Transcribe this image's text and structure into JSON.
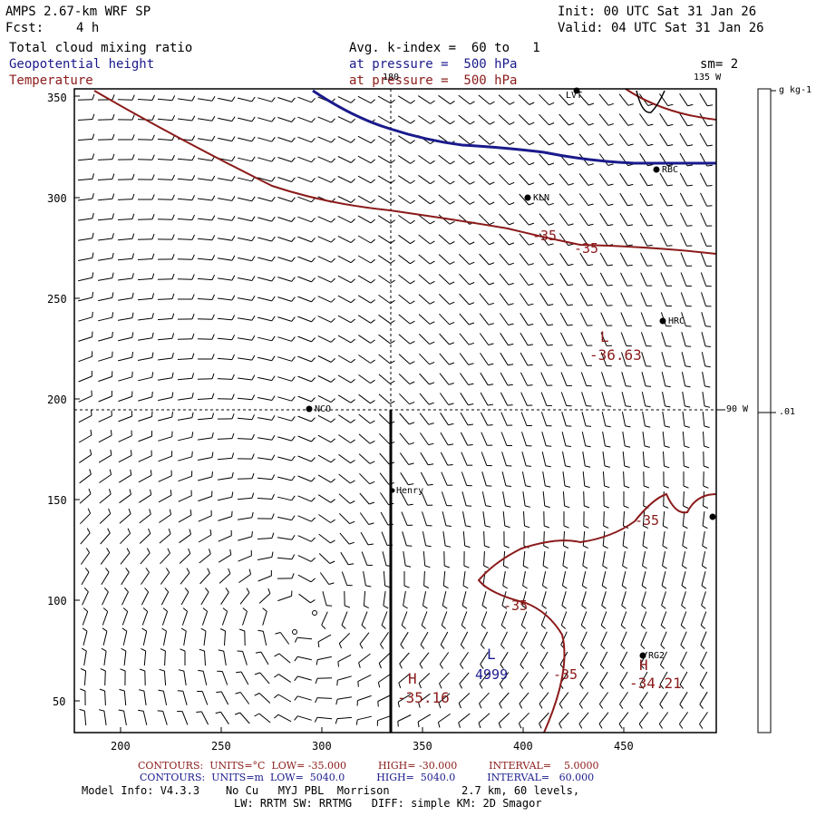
{
  "header": {
    "model": "AMPS 2.67-km WRF SP",
    "fcst_label": "Fcst:",
    "fcst_value": "4 h",
    "init": "Init: 00 UTC Sat 31 Jan 26",
    "valid": "Valid: 04 UTC Sat 31 Jan 26",
    "field1": "Total cloud mixing ratio",
    "field2": "Geopotential height",
    "field3": "Temperature",
    "avg": "Avg. k-index =  60 to   1",
    "pressure1": "at pressure =  500 hPa",
    "pressure2": "at pressure =  500 hPa",
    "sm": "sm= 2"
  },
  "colors": {
    "temperature": "#8b1a1a",
    "height": "#1a1a8c",
    "frame": "#000000"
  },
  "map": {
    "y_ticks": [
      "350",
      "300",
      "250",
      "200",
      "150",
      "100",
      "50"
    ],
    "x_ticks": [
      "200",
      "250",
      "300",
      "350",
      "400",
      "450"
    ],
    "meridian_180": "180",
    "meridian_135": "135 W",
    "meridian_90": "90 W",
    "stations": [
      "LVT",
      "RBC",
      "KLN",
      "HRC",
      "NCO",
      "Henry",
      "RG2"
    ],
    "contour_labels": [
      "-35",
      "-35",
      "-35",
      "-35",
      "-35"
    ],
    "lows_highs": {
      "low_temp_symbol": "L",
      "low_temp_value": "-36.63",
      "low_hgt_symbol": "L",
      "low_hgt_value": "4999",
      "high1_symbol": "H",
      "high1_value": "-35.16",
      "high2_symbol": "H",
      "high2_value": "-34.21"
    }
  },
  "colorbar": {
    "unit": "g kg-1",
    "value": ".01"
  },
  "footer": {
    "temp_contours": "CONTOURS:  UNITS=°C  LOW= -35.000          HIGH= -30.000          INTERVAL=    5.0000",
    "hgt_contours": "CONTOURS:  UNITS=m  LOW=  5040.0          HIGH=  5040.0          INTERVAL=   60.000",
    "model_info": "Model Info: V4.3.3    No Cu   MYJ PBL  Morrison           2.7 km, 60 levels,",
    "model_info2": "LW: RRTM SW: RRTMG   DIFF: simple KM: 2D Smagor"
  }
}
